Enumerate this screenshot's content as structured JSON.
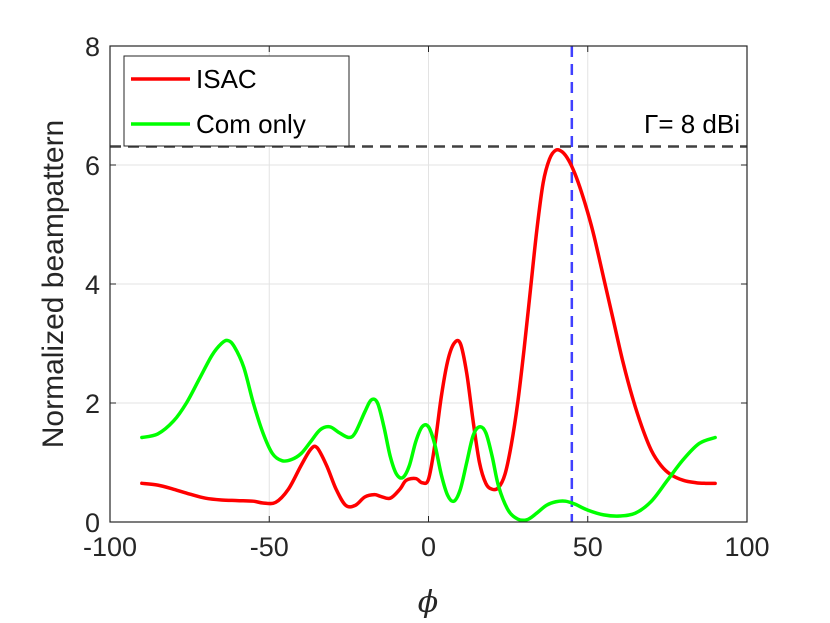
{
  "chart_data": {
    "type": "line",
    "xlabel": "ϕ",
    "ylabel": "Normalized beampattern",
    "xlim": [
      -100,
      100
    ],
    "ylim": [
      0,
      8
    ],
    "xticks": [
      -100,
      -50,
      0,
      50,
      100
    ],
    "yticks": [
      0,
      2,
      4,
      6,
      8
    ],
    "xtick_labels": [
      "-100",
      "-50",
      "0",
      "50",
      "100"
    ],
    "ytick_labels": [
      "0",
      "2",
      "4",
      "6",
      "8"
    ],
    "grid": true,
    "legend_position": "top-left",
    "series": [
      {
        "name": "ISAC",
        "color": "#ff0000",
        "x": [
          -90,
          -85,
          -80,
          -75,
          -70,
          -65,
          -60,
          -55,
          -52,
          -48,
          -44,
          -40,
          -37,
          -35,
          -32,
          -29,
          -26,
          -23,
          -20,
          -17,
          -15,
          -12,
          -9,
          -7,
          -4,
          -2,
          0,
          2,
          4,
          6,
          8,
          10,
          12,
          14,
          16,
          18,
          20,
          22,
          24,
          26,
          28,
          30,
          32,
          34,
          36,
          38,
          40,
          42,
          44,
          46,
          48,
          50,
          52,
          55,
          58,
          61,
          64,
          67,
          70,
          73,
          76,
          80,
          84,
          87,
          90
        ],
        "y": [
          0.65,
          0.62,
          0.55,
          0.47,
          0.4,
          0.37,
          0.36,
          0.35,
          0.32,
          0.33,
          0.55,
          0.95,
          1.22,
          1.25,
          0.95,
          0.55,
          0.28,
          0.28,
          0.42,
          0.46,
          0.43,
          0.4,
          0.55,
          0.7,
          0.73,
          0.66,
          0.72,
          1.3,
          2.1,
          2.7,
          3.0,
          3.0,
          2.5,
          1.7,
          1.0,
          0.65,
          0.55,
          0.58,
          0.8,
          1.3,
          2.0,
          2.9,
          3.9,
          4.9,
          5.7,
          6.1,
          6.25,
          6.22,
          6.08,
          5.85,
          5.55,
          5.2,
          4.8,
          4.1,
          3.4,
          2.7,
          2.1,
          1.6,
          1.2,
          0.95,
          0.8,
          0.7,
          0.66,
          0.65,
          0.65
        ]
      },
      {
        "name": "Com only",
        "color": "#00ff00",
        "x": [
          -90,
          -85,
          -80,
          -76,
          -72,
          -68,
          -65,
          -63,
          -61,
          -58,
          -55,
          -52,
          -49,
          -46,
          -43,
          -40,
          -37,
          -34,
          -31,
          -28,
          -25,
          -23,
          -20,
          -18,
          -16,
          -14,
          -12,
          -10,
          -8,
          -6,
          -4,
          -2,
          0,
          2,
          4,
          6,
          8,
          10,
          12,
          14,
          16,
          18,
          20,
          22,
          25,
          28,
          31,
          34,
          37,
          40,
          43,
          46,
          50,
          55,
          60,
          65,
          70,
          75,
          80,
          85,
          90
        ],
        "y": [
          1.42,
          1.48,
          1.7,
          2.0,
          2.4,
          2.8,
          3.0,
          3.05,
          2.95,
          2.6,
          2.0,
          1.5,
          1.15,
          1.03,
          1.05,
          1.15,
          1.35,
          1.55,
          1.6,
          1.5,
          1.42,
          1.5,
          1.85,
          2.05,
          2.0,
          1.6,
          1.1,
          0.8,
          0.75,
          0.95,
          1.35,
          1.6,
          1.6,
          1.3,
          0.8,
          0.45,
          0.35,
          0.55,
          1.0,
          1.45,
          1.6,
          1.5,
          1.1,
          0.6,
          0.2,
          0.05,
          0.04,
          0.15,
          0.28,
          0.34,
          0.35,
          0.3,
          0.2,
          0.12,
          0.1,
          0.15,
          0.35,
          0.7,
          1.05,
          1.32,
          1.42
        ]
      }
    ],
    "reference_lines": [
      {
        "orientation": "vertical",
        "value": 45,
        "color": "#4040ff",
        "style": "dashed"
      },
      {
        "orientation": "horizontal",
        "value": 6.31,
        "color": "#404040",
        "style": "dashed",
        "label": "Γ= 8 dBi"
      }
    ]
  }
}
